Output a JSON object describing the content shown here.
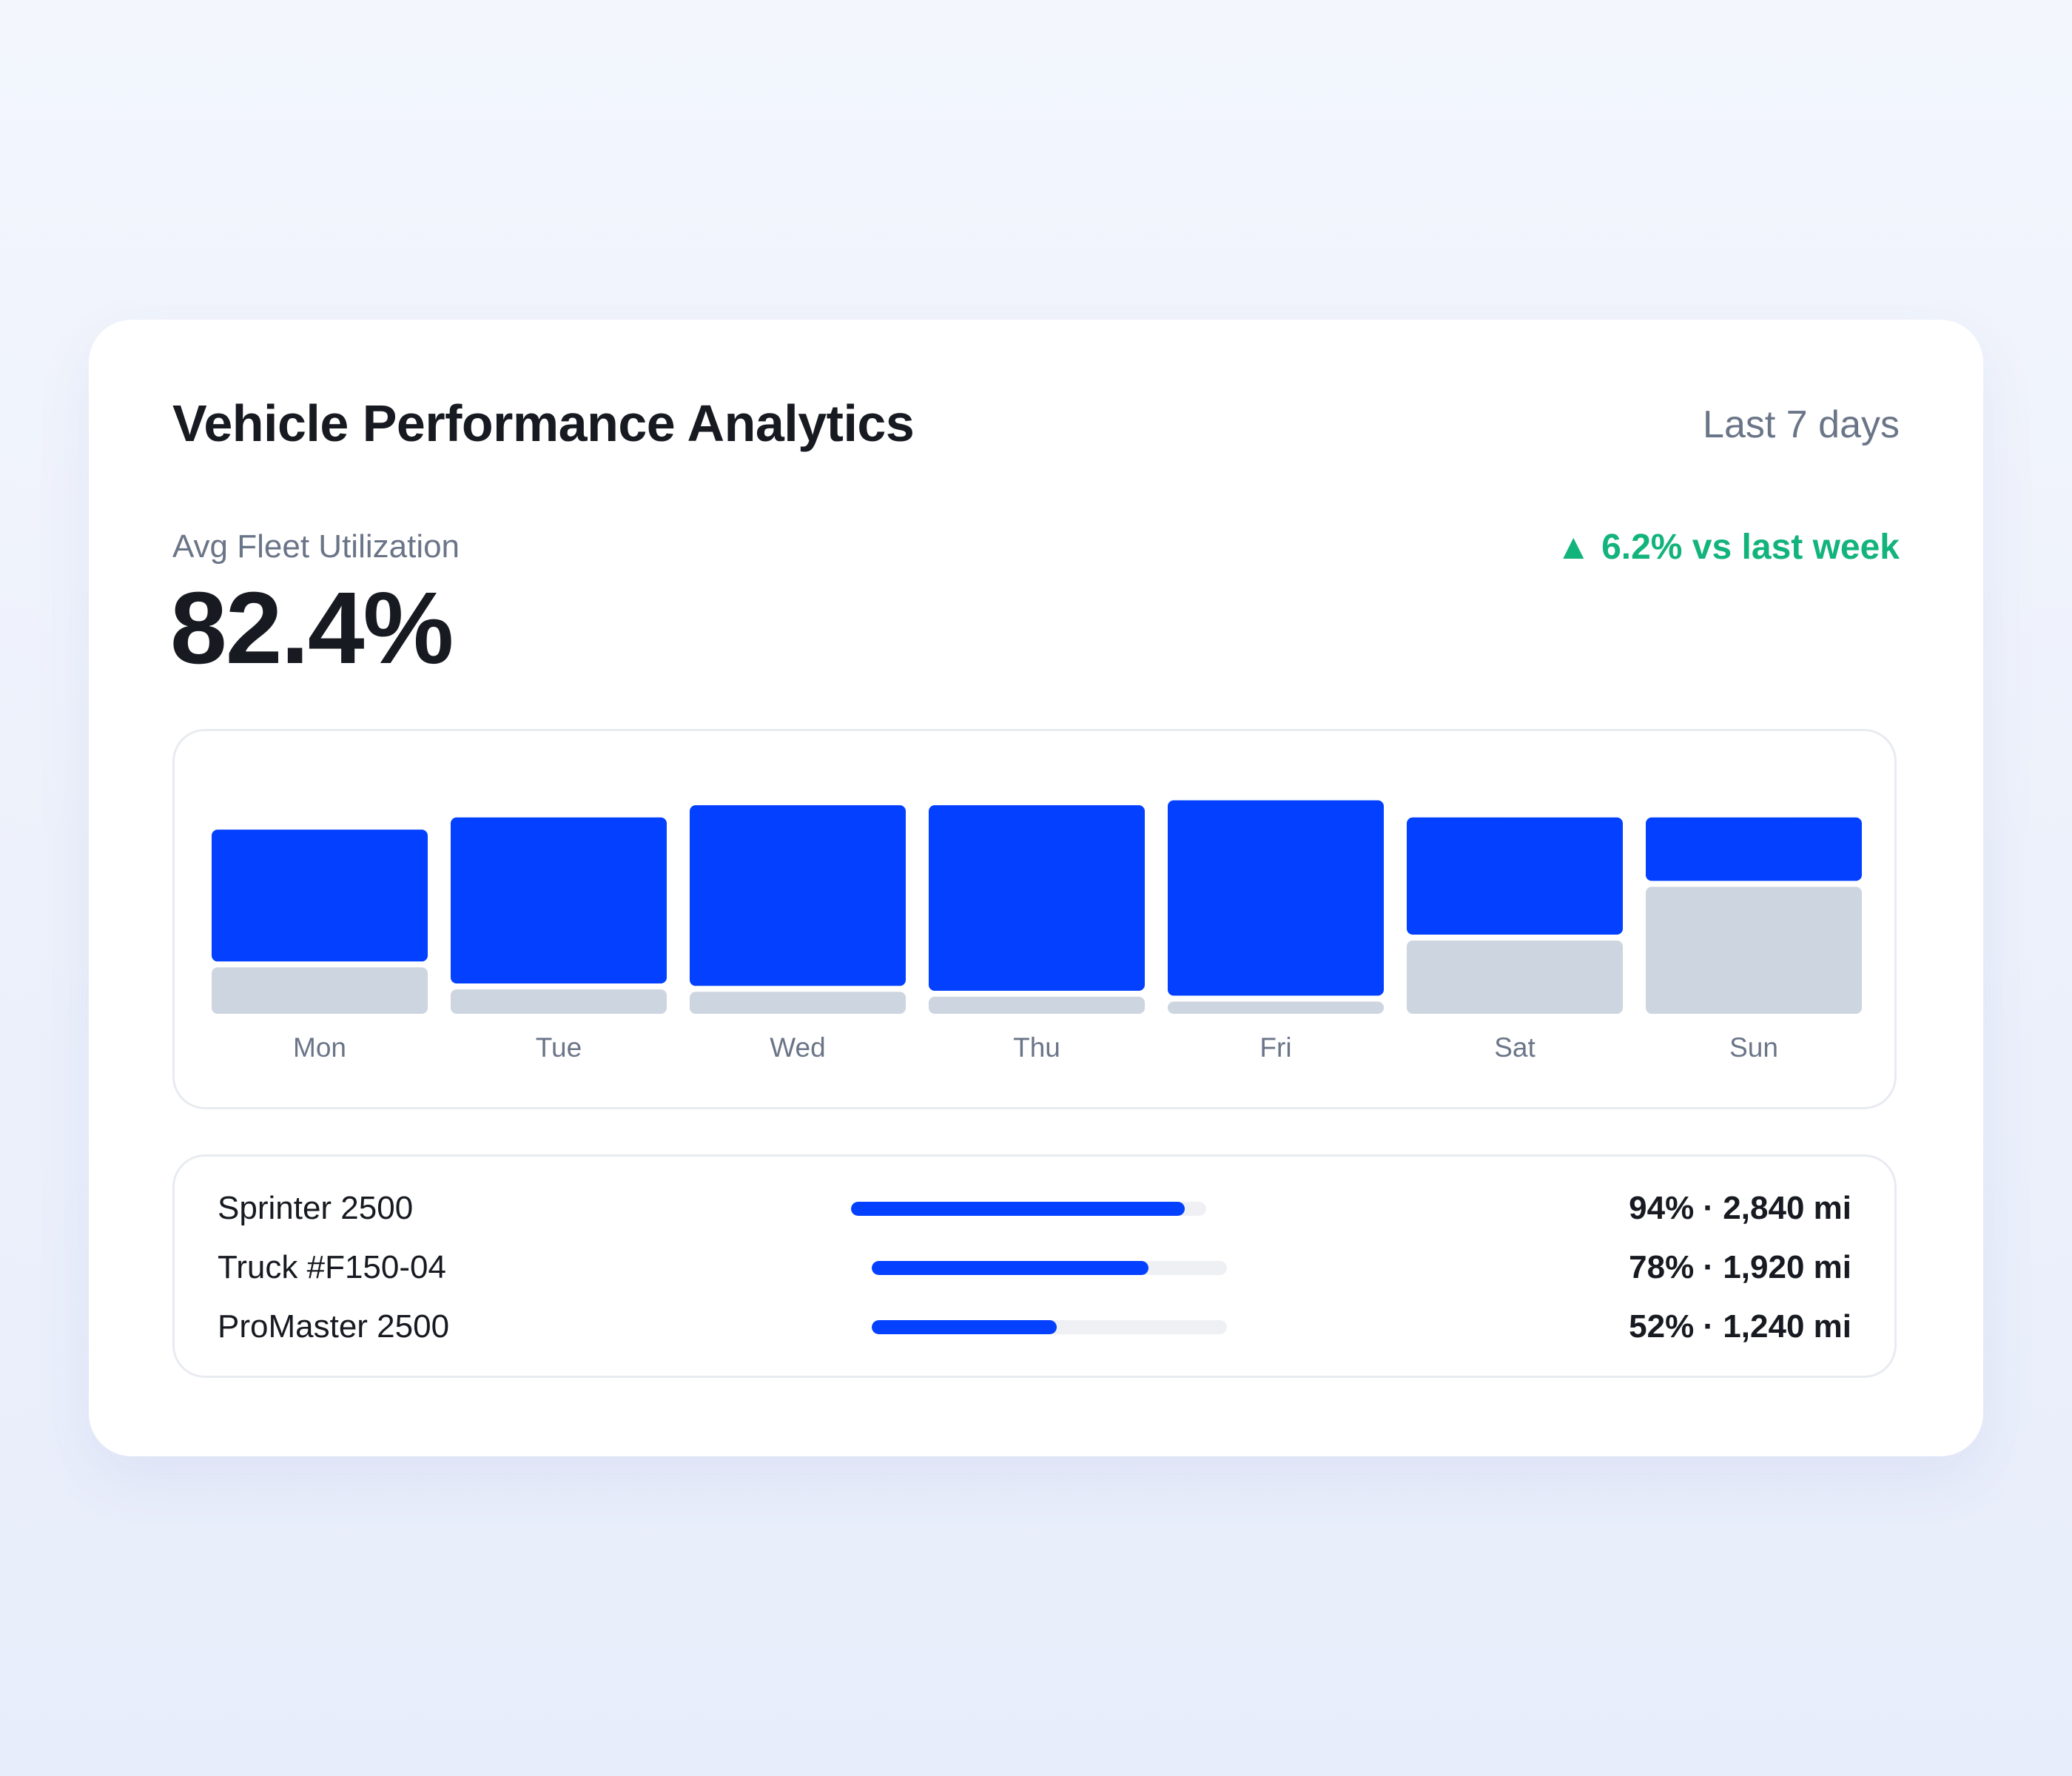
{
  "header": {
    "title": "Vehicle Performance Analytics",
    "period": "Last 7 days"
  },
  "kpi": {
    "label": "Avg Fleet Utilization",
    "value": "82.4%",
    "delta_arrow": "▲",
    "delta_text": "6.2% vs last week",
    "delta_color": "#13b37c"
  },
  "chart_data": {
    "type": "bar",
    "stacked": true,
    "categories": [
      "Mon",
      "Tue",
      "Wed",
      "Thu",
      "Fri",
      "Sat",
      "Sun"
    ],
    "series": [
      {
        "color": "#0340ff",
        "values": [
          54,
          68,
          74,
          76,
          80,
          48,
          26
        ]
      },
      {
        "color": "#cdd5e0",
        "values": [
          19,
          10,
          9,
          7,
          5,
          30,
          52
        ]
      }
    ],
    "ylim": [
      0,
      100
    ],
    "grid": false,
    "legend": "none"
  },
  "vehicles": [
    {
      "name": "Sprinter 2500",
      "utilization": 0.94,
      "stat": "94% · 2,840 mi"
    },
    {
      "name": "Truck #F150-04",
      "utilization": 0.78,
      "stat": "78% · 1,920 mi"
    },
    {
      "name": "ProMaster 2500",
      "utilization": 0.52,
      "stat": "52% · 1,240 mi"
    }
  ],
  "colors": {
    "accent": "#0340ff",
    "muted_bar": "#cdd5e0",
    "track": "#eff0f3",
    "positive": "#13b37c"
  }
}
